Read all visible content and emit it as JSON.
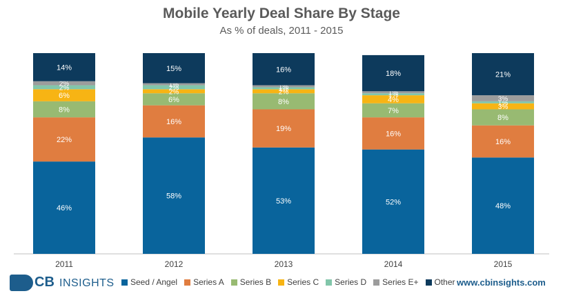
{
  "header": {
    "title": "Mobile Yearly Deal Share By Stage",
    "subtitle": "As % of deals, 2011 - 2015"
  },
  "footer": {
    "logo_cb": "CB",
    "logo_insights": "INSIGHTS",
    "website": "www.cbinsights.com"
  },
  "chart_data": {
    "type": "bar",
    "stacked": true,
    "title": "Mobile Yearly Deal Share By Stage",
    "subtitle": "As % of deals, 2011 - 2015",
    "categories": [
      "2011",
      "2012",
      "2013",
      "2014",
      "2015"
    ],
    "ylim": [
      0,
      100
    ],
    "legend_position": "bottom",
    "series": [
      {
        "name": "Seed / Angel",
        "color": "#09649c",
        "values": [
          46,
          58,
          53,
          52,
          48
        ]
      },
      {
        "name": "Series A",
        "color": "#e07d40",
        "values": [
          22,
          16,
          19,
          16,
          16
        ]
      },
      {
        "name": "Series B",
        "color": "#98ba72",
        "values": [
          8,
          6,
          8,
          7,
          8
        ]
      },
      {
        "name": "Series C",
        "color": "#f7b414",
        "values": [
          6,
          2,
          2,
          4,
          3
        ]
      },
      {
        "name": "Series D",
        "color": "#82c6aa",
        "values": [
          2,
          2,
          1,
          1,
          1
        ]
      },
      {
        "name": "Series E+",
        "color": "#9c9c9c",
        "values": [
          2,
          1,
          1,
          1,
          3
        ]
      },
      {
        "name": "Other",
        "color": "#0d3a5c",
        "values": [
          14,
          15,
          16,
          18,
          21
        ]
      }
    ]
  }
}
